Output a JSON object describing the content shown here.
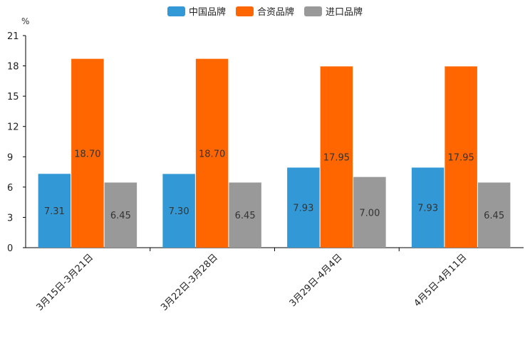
{
  "chart_data": {
    "type": "bar",
    "ylabel": "%",
    "ylim": [
      0,
      21
    ],
    "yticks": [
      0,
      3,
      6,
      9,
      12,
      15,
      18,
      21
    ],
    "categories": [
      "3月15日-3月21日",
      "3月22日-3月28日",
      "3月29日-4月4日",
      "4月5日-4月11日"
    ],
    "series": [
      {
        "name": "中国品牌",
        "color": "#3399d6",
        "values": [
          7.31,
          7.3,
          7.93,
          7.93
        ],
        "labels": [
          "7.31",
          "7.30",
          "7.93",
          "7.93"
        ]
      },
      {
        "name": "合资品牌",
        "color": "#ff6600",
        "values": [
          18.7,
          18.7,
          17.95,
          17.95
        ],
        "labels": [
          "18.70",
          "18.70",
          "17.95",
          "17.95"
        ]
      },
      {
        "name": "进口品牌",
        "color": "#999999",
        "values": [
          6.45,
          6.45,
          7.0,
          6.45
        ],
        "labels": [
          "6.45",
          "6.45",
          "7.00",
          "6.45"
        ]
      }
    ],
    "legend_position": "top-center"
  }
}
